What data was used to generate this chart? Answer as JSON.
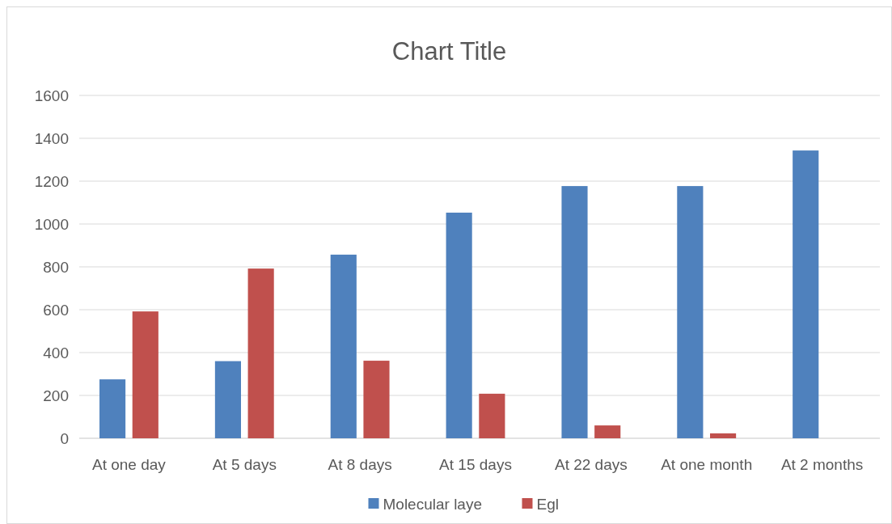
{
  "chart_data": {
    "type": "bar",
    "title": "Chart Title",
    "categories": [
      "At one day",
      "At 5 days",
      "At 8 days",
      "At 15 days",
      "At 22 days",
      "At one month",
      "At 2 months"
    ],
    "series": [
      {
        "name": "Molecular laye",
        "color": "#4f81bd",
        "values": [
          275,
          360,
          857,
          1053,
          1177,
          1177,
          1343
        ]
      },
      {
        "name": "Egl",
        "color": "#c0504d",
        "values": [
          592,
          792,
          362,
          208,
          60,
          23,
          null
        ]
      }
    ],
    "ylim": [
      0,
      1600
    ],
    "yticks": [
      0,
      200,
      400,
      600,
      800,
      1000,
      1200,
      1400,
      1600
    ],
    "grid": "y",
    "legend": "bottom"
  }
}
